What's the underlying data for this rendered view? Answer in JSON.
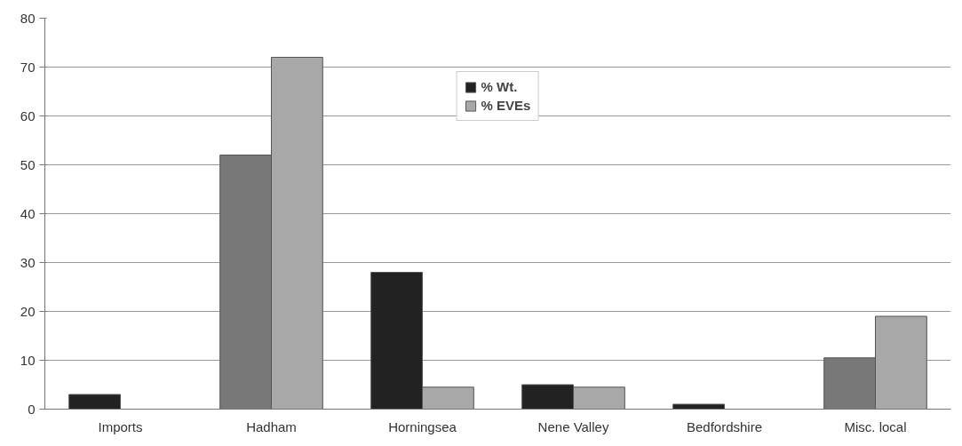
{
  "chart_data": {
    "type": "bar",
    "categories": [
      "Imports",
      "Hadham",
      "Horningsea",
      "Nene Valley",
      "Bedfordshire",
      "Misc. local"
    ],
    "series": [
      {
        "name": "% Wt.",
        "colors": [
          "#222222",
          "#787878",
          "#222222",
          "#222222",
          "#222222",
          "#787878"
        ],
        "values": [
          3,
          52,
          28,
          5,
          1,
          10.5
        ]
      },
      {
        "name": "% EVEs",
        "color": "#a8a8a8",
        "values": [
          null,
          72,
          4.5,
          4.5,
          null,
          19
        ]
      }
    ],
    "ylim": [
      0,
      80
    ],
    "yticks": [
      0,
      10,
      20,
      30,
      40,
      50,
      60,
      70,
      80
    ],
    "grid": "y",
    "legend": "top"
  }
}
